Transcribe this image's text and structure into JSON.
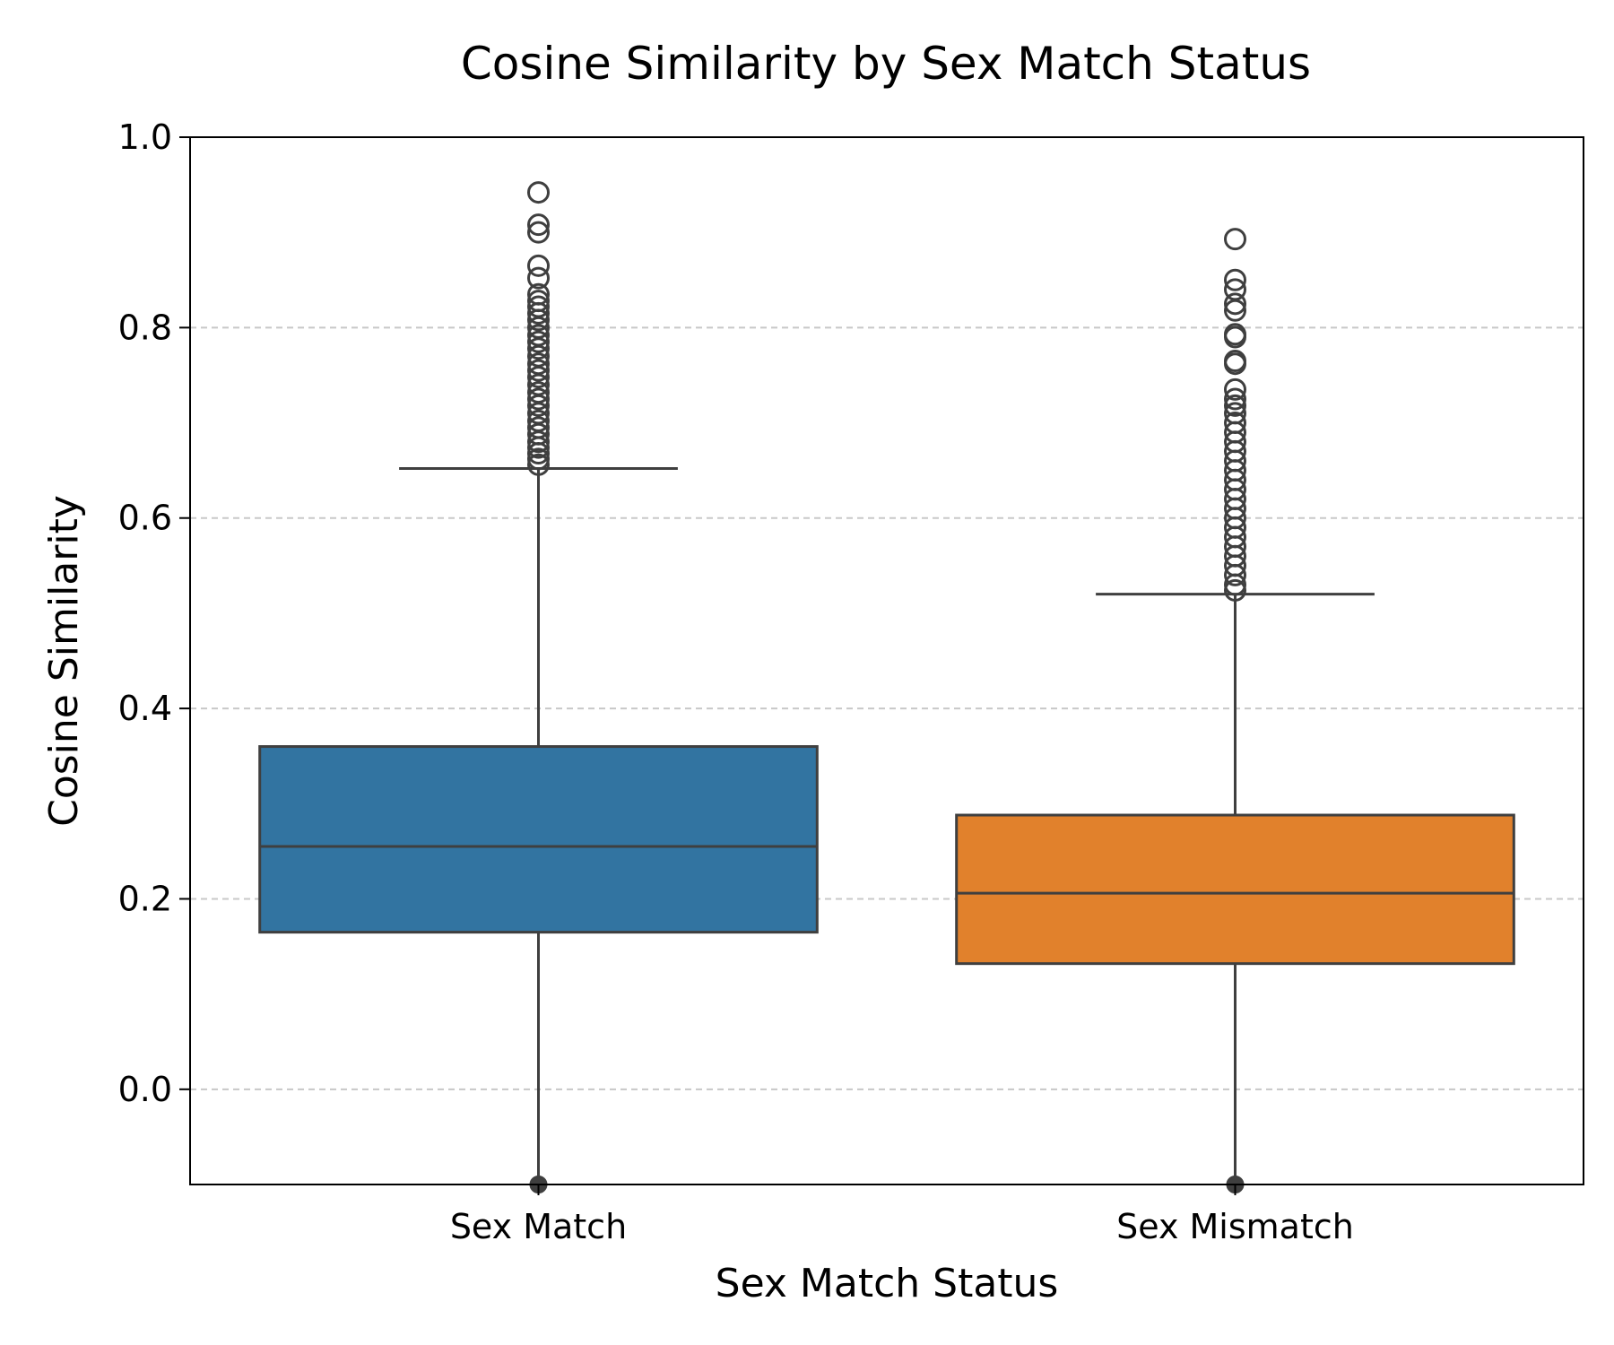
{
  "chart_data": {
    "type": "box",
    "title": "Cosine Similarity by Sex Match Status",
    "xlabel": "Sex Match Status",
    "ylabel": "Cosine Similarity",
    "ylim": [
      -0.1,
      1.0
    ],
    "yticks": [
      "0.0",
      "0.2",
      "0.4",
      "0.6",
      "0.8",
      "1.0"
    ],
    "grid": "horizontal dashed",
    "categories": [
      "Sex Match",
      "Sex Mismatch"
    ],
    "boxes": [
      {
        "category": "Sex Match",
        "color": "#3274a1",
        "whisker_low": -0.1,
        "q1": 0.165,
        "median": 0.255,
        "q3": 0.36,
        "whisker_high": 0.652,
        "outliers": [
          0.942,
          0.908,
          0.9,
          0.865,
          0.852,
          0.835,
          0.828,
          0.822,
          0.815,
          0.808,
          0.8,
          0.792,
          0.785,
          0.778,
          0.77,
          0.762,
          0.755,
          0.748,
          0.74,
          0.732,
          0.725,
          0.718,
          0.71,
          0.702,
          0.695,
          0.688,
          0.68,
          0.674,
          0.668,
          0.662,
          0.656
        ]
      },
      {
        "category": "Sex Mismatch",
        "color": "#e1812c",
        "whisker_low": -0.1,
        "q1": 0.132,
        "median": 0.206,
        "q3": 0.288,
        "whisker_high": 0.52,
        "outliers": [
          0.893,
          0.85,
          0.84,
          0.825,
          0.818,
          0.793,
          0.79,
          0.765,
          0.762,
          0.735,
          0.725,
          0.718,
          0.71,
          0.7,
          0.69,
          0.68,
          0.67,
          0.66,
          0.65,
          0.64,
          0.63,
          0.62,
          0.61,
          0.6,
          0.59,
          0.58,
          0.57,
          0.56,
          0.55,
          0.54,
          0.53,
          0.524
        ]
      }
    ]
  }
}
